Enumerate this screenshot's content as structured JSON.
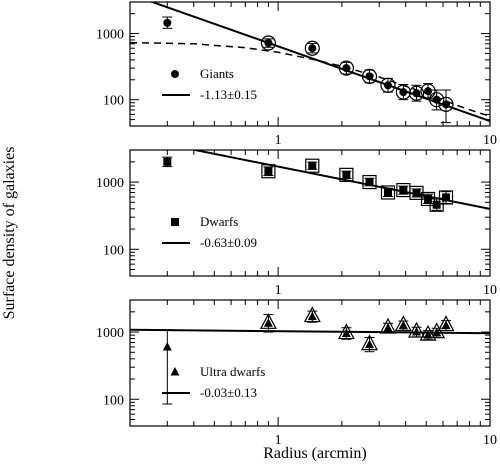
{
  "chart_data": [
    {
      "type": "scatter",
      "panel": "top",
      "xscale": "log",
      "yscale": "log",
      "xlim": [
        0.2,
        10
      ],
      "ylim": [
        40,
        3000
      ],
      "x_ticks": [
        "1",
        "10"
      ],
      "y_ticks": [
        "100",
        "1000"
      ],
      "legend": {
        "placement": "lower-left",
        "marker_label": "Giants",
        "line_label": "-1.13±0.15"
      },
      "series": [
        {
          "name": "Giants",
          "marker": "filled-circle",
          "points": [
            {
              "x": 0.3,
              "y": 1450,
              "lo": 1200,
              "hi": 1780
            },
            {
              "x": 0.9,
              "y": 720,
              "lo": 620,
              "hi": 830
            },
            {
              "x": 1.45,
              "y": 600,
              "lo": 510,
              "hi": 710
            },
            {
              "x": 2.1,
              "y": 300,
              "lo": 245,
              "hi": 365
            },
            {
              "x": 2.7,
              "y": 225,
              "lo": 180,
              "hi": 280
            },
            {
              "x": 3.3,
              "y": 165,
              "lo": 130,
              "hi": 210
            },
            {
              "x": 3.9,
              "y": 130,
              "lo": 100,
              "hi": 170
            },
            {
              "x": 4.5,
              "y": 125,
              "lo": 95,
              "hi": 165
            },
            {
              "x": 5.1,
              "y": 135,
              "lo": 105,
              "hi": 175
            },
            {
              "x": 5.6,
              "y": 100,
              "lo": 70,
              "hi": 140
            },
            {
              "x": 6.2,
              "y": 85,
              "lo": 45,
              "hi": 140
            }
          ]
        }
      ],
      "fits": [
        {
          "style": "solid",
          "slope": -1.13,
          "anchor_x": 1.0,
          "anchor_y": 640
        },
        {
          "style": "dashed",
          "kind": "profile",
          "points": [
            [
              0.2,
              730
            ],
            [
              0.4,
              700
            ],
            [
              0.7,
              610
            ],
            [
              1.0,
              520
            ],
            [
              1.5,
              400
            ],
            [
              2.0,
              320
            ],
            [
              3.0,
              220
            ],
            [
              4.0,
              160
            ],
            [
              5.0,
              125
            ],
            [
              6.0,
              100
            ],
            [
              7.0,
              82
            ],
            [
              8.5,
              66
            ],
            [
              10,
              56
            ]
          ]
        }
      ]
    },
    {
      "type": "scatter",
      "panel": "middle",
      "xscale": "log",
      "yscale": "log",
      "xlim": [
        0.2,
        10
      ],
      "ylim": [
        40,
        3000
      ],
      "x_ticks": [
        "1",
        "10"
      ],
      "y_ticks": [
        "100",
        "1000"
      ],
      "legend": {
        "placement": "lower-left",
        "marker_label": "Dwarfs",
        "line_label": "-0.63±0.09"
      },
      "series": [
        {
          "name": "Dwarfs",
          "marker": "filled-square",
          "points": [
            {
              "x": 0.3,
              "y": 2000,
              "lo": 1700,
              "hi": 2350
            },
            {
              "x": 0.9,
              "y": 1450,
              "lo": 1250,
              "hi": 1680
            },
            {
              "x": 1.45,
              "y": 1750,
              "lo": 1550,
              "hi": 1980
            },
            {
              "x": 2.1,
              "y": 1280,
              "lo": 1130,
              "hi": 1450
            },
            {
              "x": 2.7,
              "y": 1000,
              "lo": 880,
              "hi": 1140
            },
            {
              "x": 3.3,
              "y": 700,
              "lo": 610,
              "hi": 810
            },
            {
              "x": 3.9,
              "y": 760,
              "lo": 660,
              "hi": 870
            },
            {
              "x": 4.5,
              "y": 690,
              "lo": 600,
              "hi": 790
            },
            {
              "x": 5.1,
              "y": 560,
              "lo": 480,
              "hi": 660
            },
            {
              "x": 5.6,
              "y": 460,
              "lo": 380,
              "hi": 560
            },
            {
              "x": 6.2,
              "y": 590,
              "lo": 480,
              "hi": 720
            }
          ]
        }
      ],
      "fits": [
        {
          "style": "solid",
          "slope": -0.63,
          "anchor_x": 1.0,
          "anchor_y": 1700
        }
      ]
    },
    {
      "type": "scatter",
      "panel": "bottom",
      "xscale": "log",
      "yscale": "log",
      "xlim": [
        0.2,
        10
      ],
      "ylim": [
        40,
        3000
      ],
      "x_ticks": [
        "1",
        "10"
      ],
      "y_ticks": [
        "100",
        "1000"
      ],
      "xlabel": "Radius (arcmin)",
      "legend": {
        "placement": "lower-left",
        "marker_label": "Ultra dwarfs",
        "line_label": "-0.03±0.13"
      },
      "series": [
        {
          "name": "Ultra dwarfs",
          "marker": "filled-triangle",
          "points": [
            {
              "x": 0.3,
              "y": 600,
              "lo": 85,
              "hi": 1080
            },
            {
              "x": 0.9,
              "y": 1350,
              "lo": 1000,
              "hi": 1820
            },
            {
              "x": 1.45,
              "y": 1700,
              "lo": 1400,
              "hi": 2050
            },
            {
              "x": 2.1,
              "y": 950,
              "lo": 780,
              "hi": 1160
            },
            {
              "x": 2.7,
              "y": 650,
              "lo": 510,
              "hi": 830
            },
            {
              "x": 3.3,
              "y": 1150,
              "lo": 980,
              "hi": 1350
            },
            {
              "x": 3.9,
              "y": 1250,
              "lo": 1070,
              "hi": 1460
            },
            {
              "x": 4.5,
              "y": 1000,
              "lo": 850,
              "hi": 1180
            },
            {
              "x": 5.1,
              "y": 900,
              "lo": 770,
              "hi": 1050
            },
            {
              "x": 5.6,
              "y": 980,
              "lo": 840,
              "hi": 1140
            },
            {
              "x": 6.2,
              "y": 1250,
              "lo": 1060,
              "hi": 1480
            }
          ]
        }
      ],
      "fits": [
        {
          "style": "solid",
          "slope": -0.03,
          "anchor_x": 1.0,
          "anchor_y": 1030
        }
      ]
    }
  ],
  "ylabel": "Surface density of galaxies"
}
